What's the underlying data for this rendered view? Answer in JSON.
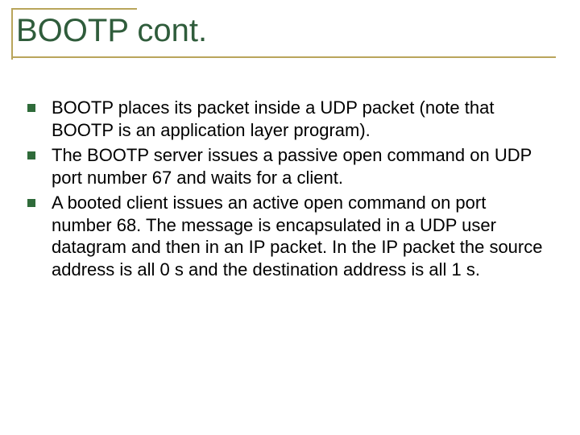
{
  "colors": {
    "title_text": "#2f5c3b",
    "rule": "#b9a55b",
    "bullet": "#2f6b3a",
    "body_text": "#000000",
    "background": "#ffffff"
  },
  "title": "BOOTP cont.",
  "bullets": [
    "BOOTP places its packet inside a UDP packet (note that BOOTP is an application layer program).",
    "The BOOTP server issues a passive open command on UDP port number 67 and waits for a client.",
    "A booted client issues an active open command on port number 68.  The message is encapsulated in a UDP user datagram and then in an IP packet.  In the IP packet the source address is all 0 s and the destination address is all 1 s."
  ]
}
